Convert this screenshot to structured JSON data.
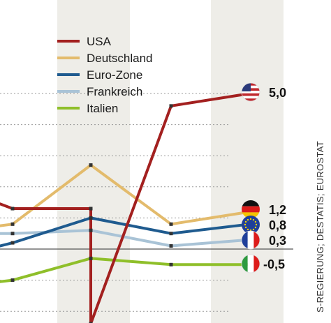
{
  "chart_data": {
    "type": "line",
    "title": "",
    "xlabel": "",
    "ylabel": "",
    "x": [
      1,
      2,
      3,
      4,
      5,
      6,
      7
    ],
    "ylim": [
      -2.6,
      5.4
    ],
    "grid": true,
    "zero_line": true,
    "legend_position": "top-center",
    "shaded_columns": [
      3,
      6
    ],
    "series": [
      {
        "name": "USA",
        "color": "#a3201f",
        "values": [
          null,
          1.3,
          -2.4,
          4.6,
          5.0
        ],
        "x": [
          1,
          1.6,
          3.7,
          5.6,
          7.3
        ]
      },
      {
        "name": "Deutschland",
        "color": "#e3bb6c",
        "values": [
          null,
          0.8,
          2.7,
          0.8,
          1.2
        ],
        "x": [
          1,
          1.6,
          3.7,
          5.6,
          7.3
        ]
      },
      {
        "name": "Euro-Zone",
        "color": "#1f5b8f",
        "values": [
          null,
          0.2,
          1.0,
          0.5,
          0.8
        ],
        "x": [
          1,
          1.6,
          3.7,
          5.6,
          7.3
        ]
      },
      {
        "name": "Frankreich",
        "color": "#a9c3d6",
        "values": [
          null,
          0.5,
          0.6,
          0.1,
          0.3
        ],
        "x": [
          1,
          1.6,
          3.7,
          5.6,
          7.3
        ]
      },
      {
        "name": "Italien",
        "color": "#8fbf2a",
        "values": [
          null,
          -1.0,
          -0.3,
          -0.5,
          -0.5
        ],
        "x": [
          1,
          1.6,
          3.7,
          5.6,
          7.3
        ]
      }
    ],
    "end_labels": [
      {
        "series": "USA",
        "text": "5,0",
        "flag": "usa-flag-icon"
      },
      {
        "series": "Deutschland",
        "text": "1,2",
        "flag": "germany-flag-icon"
      },
      {
        "series": "Euro-Zone",
        "text": "0,8",
        "flag": "eu-flag-icon"
      },
      {
        "series": "Frankreich",
        "text": "0,3",
        "flag": "france-flag-icon"
      },
      {
        "series": "Italien",
        "text": "-0,5",
        "flag": "italy-flag-icon"
      }
    ],
    "source": "S-REGIERUNG; DESTATIS; EUROSTAT"
  }
}
